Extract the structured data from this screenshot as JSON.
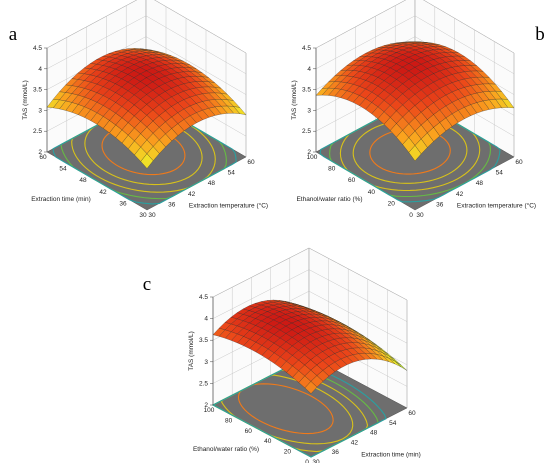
{
  "figure": {
    "panels": [
      {
        "letter": "a",
        "chart_data": {
          "type": "surface",
          "zlabel": "TAS (mmol/L)",
          "zlim": [
            2,
            4.5
          ],
          "zticks": [
            "2",
            "2.5",
            "3",
            "3.5",
            "4",
            "4.5"
          ],
          "x": {
            "label": "Extraction temperature (°C)",
            "range": [
              30,
              60
            ],
            "ticks": [
              "30",
              "36",
              "42",
              "48",
              "54",
              "60"
            ]
          },
          "y": {
            "label": "Extraction time (min)",
            "range": [
              30,
              60
            ],
            "ticks": [
              "30",
              "36",
              "42",
              "48",
              "54",
              "60"
            ]
          },
          "model": {
            "peak": 3.85,
            "x_opt": 0.52,
            "y_opt": 0.55,
            "ax": 1.8,
            "ay": 1.3,
            "axy": 0.1
          },
          "contour": true,
          "grid": true
        }
      },
      {
        "letter": "b",
        "chart_data": {
          "type": "surface",
          "zlabel": "TAS (mmol/L)",
          "zlim": [
            2,
            4.5
          ],
          "zticks": [
            "2",
            "2.5",
            "3",
            "3.5",
            "4",
            "4.5"
          ],
          "x": {
            "label": "Extraction temperature (°C)",
            "range": [
              30,
              60
            ],
            "ticks": [
              "30",
              "36",
              "42",
              "48",
              "54",
              "60"
            ]
          },
          "y": {
            "label": "Ethanol/water ratio (%)",
            "range": [
              0,
              100
            ],
            "ticks": [
              "0",
              "20",
              "40",
              "60",
              "80",
              "100"
            ]
          },
          "model": {
            "peak": 4.1,
            "x_opt": 0.5,
            "y_opt": 0.55,
            "ax": 1.5,
            "ay": 1.8,
            "axy": 0
          },
          "contour": true,
          "grid": true
        }
      },
      {
        "letter": "c",
        "chart_data": {
          "type": "surface",
          "zlabel": "TAS (mmol/L)",
          "zlim": [
            2,
            4.5
          ],
          "zticks": [
            "2",
            "2.5",
            "3",
            "3.5",
            "4",
            "4.5"
          ],
          "x": {
            "label": "Extraction time (min)",
            "range": [
              30,
              60
            ],
            "ticks": [
              "30",
              "36",
              "42",
              "48",
              "54",
              "60"
            ]
          },
          "y": {
            "label": "Ethanol/water ratio (%)",
            "range": [
              0,
              100
            ],
            "ticks": [
              "0",
              "20",
              "40",
              "60",
              "80",
              "100"
            ]
          },
          "model": {
            "peak": 4.0,
            "x_opt": 0.35,
            "y_opt": 0.6,
            "ax": 2.0,
            "ay": 0.8,
            "axy": 0
          },
          "contour": true,
          "grid": true
        }
      }
    ]
  }
}
